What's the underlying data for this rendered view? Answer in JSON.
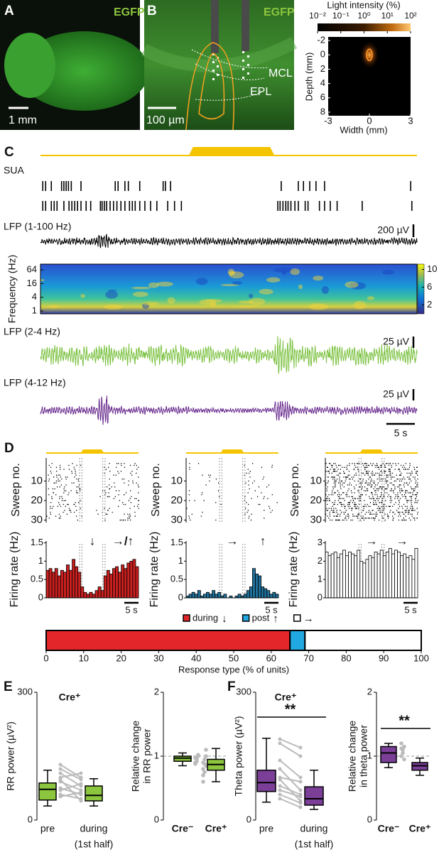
{
  "panel_a": {
    "letter": "A",
    "label": "EGFP",
    "scale_bar": "1 mm"
  },
  "panel_b": {
    "letter": "B",
    "label": "EGFP",
    "scale_bar": "100 µm",
    "layers": [
      "MCL",
      "EPL"
    ]
  },
  "panel_b_inset": {
    "type": "heatmap",
    "title": "Light intensity (%)",
    "colorbar_lim": [
      0.01,
      100
    ],
    "colorbar_log": true,
    "colorbar_ticks": [
      {
        "value": 0.01,
        "label": "10⁻²"
      },
      {
        "value": 0.1,
        "label": "10⁻¹"
      },
      {
        "value": 1,
        "label": "10⁰"
      },
      {
        "value": 10,
        "label": "10¹"
      },
      {
        "value": 100,
        "label": "10²"
      }
    ],
    "xlabel": "Width (mm)",
    "xlim": [
      -3,
      3
    ],
    "xticks": [
      -3,
      0,
      3
    ],
    "ylabel": "Depth (mm)",
    "ylim": [
      -2.5,
      8.5
    ],
    "yticks": [
      -2,
      0,
      2,
      4,
      6,
      8
    ]
  },
  "panel_c": {
    "letter": "C",
    "xlim": [
      0,
      66
    ],
    "light": [
      26,
      41
    ],
    "sua": {
      "label": "SUA",
      "units": [
        [
          0.4,
          0.9,
          1.9,
          3.7,
          4.1,
          4.5,
          4.9,
          5.4,
          7.1,
          13.1,
          13.6,
          14.8,
          15.4,
          17.4,
          21.5,
          21.9,
          22.8,
          42.2,
          45.2,
          46.1,
          47.2,
          48.3,
          49.8,
          64.9
        ],
        [
          0.4,
          0.9,
          1.9,
          2.4,
          2.9,
          4.1,
          5.0,
          5.5,
          6.0,
          6.5,
          7.1,
          8.0,
          8.8,
          10.5,
          10.8,
          11.2,
          11.6,
          12.2,
          12.8,
          13.4,
          14.1,
          14.8,
          15.6,
          16.1,
          16.6,
          17.4,
          18.3,
          19.3,
          20.4,
          22.3,
          23.5,
          24.7,
          41.6,
          42.0,
          42.5,
          43.0,
          43.4,
          43.9,
          44.6,
          45.2,
          46.4,
          46.9,
          48.9,
          49.8,
          50.8,
          52.0,
          56.4,
          65.1
        ]
      ]
    },
    "lfp_broad": {
      "label": "LFP (1-100 Hz)",
      "scale_bar": "200 µV"
    },
    "spectrogram": {
      "ylabel": "Frequency (Hz)",
      "log": true,
      "ylim": [
        0.75,
        114
      ],
      "yticks": [
        1,
        4,
        16,
        64
      ],
      "colorbar_lim": [
        0,
        11.2
      ],
      "colorbar_ticks": [
        2,
        6,
        10
      ]
    },
    "lfp_delta": {
      "label": "LFP (2-4 Hz)",
      "scale_bar": "25 µV",
      "color": "#7cc242"
    },
    "lfp_theta": {
      "label": "LFP (4-12 Hz)",
      "scale_bar": "25 µV",
      "color": "#6a2d8f"
    },
    "time_scale_bar": {
      "label": "5 s",
      "value": 5
    }
  },
  "panel_d": {
    "letter": "D",
    "xlim": [
      0,
      32
    ],
    "light": [
      12,
      20
    ],
    "raster_ylabel": "Sweep no.",
    "raster_ylim": [
      0,
      31
    ],
    "raster_yticks": [
      10,
      20,
      30
    ],
    "histogram_ylabel": "Firing rate (Hz)",
    "columns": [
      {
        "color": "#c8201f",
        "ylim": [
          0,
          1.55
        ],
        "yticks": [
          0,
          0.5,
          1,
          1.5
        ],
        "arrows": [
          "↓",
          "→/↑"
        ],
        "scale_bar": "5 s",
        "values": [
          0.75,
          0.8,
          0.7,
          0.8,
          0.6,
          0.75,
          0.7,
          0.9,
          0.75,
          1.05,
          0.85,
          0.7,
          0.3,
          0.15,
          0.1,
          0.15,
          0.1,
          0.2,
          0.3,
          0.2,
          0.6,
          0.75,
          0.65,
          0.8,
          0.85,
          0.7,
          0.9,
          0.8,
          0.95,
          1.0,
          1.05,
          0.85
        ]
      },
      {
        "color": "#1f6f9a",
        "ylim": [
          0,
          1.55
        ],
        "yticks": [
          0,
          0.5,
          1,
          1.5
        ],
        "arrows": [
          "→",
          "↑"
        ],
        "scale_bar": "5 s",
        "values": [
          0.05,
          0.1,
          0.15,
          0.1,
          0.2,
          0.05,
          0.1,
          0.15,
          0.1,
          0.2,
          0.1,
          0.15,
          0.05,
          0.1,
          0,
          0.05,
          0,
          0.05,
          0.1,
          0.05,
          0.1,
          0.2,
          0.3,
          0.8,
          0.65,
          0.6,
          0.3,
          0.25,
          0.2,
          0.1,
          0.15,
          0.1
        ]
      },
      {
        "color": "#ffffff",
        "ylim": [
          0,
          3.1
        ],
        "yticks": [
          0,
          1,
          2,
          3
        ],
        "arrows": [
          "→",
          "→"
        ],
        "scale_bar": "5 s",
        "values": [
          2.5,
          2.3,
          2.4,
          2.5,
          2.2,
          2.4,
          2.6,
          2.3,
          2.5,
          2.4,
          2.3,
          2.6,
          2.0,
          1.9,
          2.1,
          2.3,
          2.2,
          2.5,
          2.4,
          2.6,
          2.3,
          2.5,
          2.7,
          2.4,
          2.6,
          2.5,
          2.3,
          2.4,
          2.2,
          2.3,
          2.1,
          2.7
        ]
      }
    ],
    "response": {
      "type": "stacked-bar",
      "xlabel": "Response type (% of units)",
      "xlim": [
        0,
        100
      ],
      "xticks": [
        0,
        10,
        20,
        30,
        40,
        50,
        60,
        70,
        80,
        90,
        100
      ],
      "series": [
        {
          "name": "during",
          "symbol": "↓",
          "color": "#e3262a",
          "value": 65
        },
        {
          "name": "post",
          "symbol": "↑",
          "color": "#22a8e0",
          "value": 4
        },
        {
          "symbol": "→",
          "color": "#ffffff",
          "value": 31
        }
      ]
    }
  },
  "panel_e": {
    "letter": "E",
    "title": "Cre⁺",
    "paired": {
      "type": "box",
      "ylabel": "RR power (µV²)",
      "ylim": [
        0,
        300
      ],
      "yticks": [
        0,
        300
      ],
      "categories": [
        "pre",
        "during"
      ],
      "sublabel": "(1st half)",
      "color": "#8cc63f",
      "boxes": [
        {
          "min": 33,
          "q1": 47,
          "median": 72,
          "q3": 87,
          "max": 117
        },
        {
          "min": 33,
          "q1": 45,
          "median": 58,
          "q3": 80,
          "max": 97
        }
      ],
      "pairs": [
        [
          75,
          60
        ],
        [
          100,
          110
        ],
        [
          120,
          95
        ],
        [
          60,
          50
        ],
        [
          90,
          70
        ],
        [
          110,
          80
        ],
        [
          70,
          85
        ],
        [
          130,
          100
        ],
        [
          55,
          65
        ],
        [
          95,
          45
        ]
      ]
    },
    "relative": {
      "type": "box",
      "ylabel": [
        "Relative change",
        "in RR power"
      ],
      "ylim": [
        0,
        2
      ],
      "yticks": [
        0,
        1,
        2
      ],
      "categories": [
        "Cre⁻",
        "Cre⁺"
      ],
      "color": "#8cc63f",
      "boxes": [
        {
          "min": 0.85,
          "q1": 0.92,
          "median": 0.97,
          "q3": 1.0,
          "max": 1.05
        },
        {
          "min": 0.6,
          "q1": 0.78,
          "median": 0.87,
          "q3": 0.95,
          "max": 1.12
        }
      ],
      "points": [
        [
          0.9,
          0.95,
          1.0,
          0.97,
          0.92,
          1.02,
          0.88,
          0.99
        ],
        [
          0.6,
          0.75,
          0.85,
          0.9,
          0.95,
          1.1,
          0.8,
          0.88,
          1.0,
          0.7
        ]
      ]
    }
  },
  "panel_f": {
    "letter": "F",
    "title": "Cre⁺",
    "paired": {
      "type": "box",
      "ylabel": "Theta power (µV²)",
      "ylim": [
        0,
        300
      ],
      "yticks": [
        0,
        300
      ],
      "categories": [
        "pre",
        "during"
      ],
      "sublabel": "(1st half)",
      "color": "#7b3f98",
      "significance": "**",
      "boxes": [
        {
          "min": 42,
          "q1": 67,
          "median": 88,
          "q3": 117,
          "max": 192
        },
        {
          "min": 25,
          "q1": 35,
          "median": 50,
          "q3": 78,
          "max": 117
        }
      ],
      "pairs": [
        [
          190,
          170
        ],
        [
          180,
          150
        ],
        [
          120,
          70
        ],
        [
          100,
          90
        ],
        [
          80,
          60
        ],
        [
          60,
          40
        ],
        [
          95,
          45
        ],
        [
          70,
          55
        ],
        [
          140,
          100
        ],
        [
          50,
          30
        ]
      ]
    },
    "relative": {
      "type": "box",
      "ylabel": [
        "Relative change",
        "in theta power"
      ],
      "ylim": [
        0,
        2
      ],
      "yticks": [
        0,
        1,
        2
      ],
      "categories": [
        "Cre⁻",
        "Cre⁺"
      ],
      "color": "#7b3f98",
      "significance": "**",
      "boxes": [
        {
          "min": 0.82,
          "q1": 0.9,
          "median": 1.05,
          "q3": 1.15,
          "max": 1.2
        },
        {
          "min": 0.7,
          "q1": 0.78,
          "median": 0.85,
          "q3": 0.9,
          "max": 0.97
        }
      ],
      "points": [
        [
          1.0,
          1.1,
          1.15,
          1.2,
          1.05,
          0.95,
          1.12
        ],
        []
      ]
    }
  }
}
